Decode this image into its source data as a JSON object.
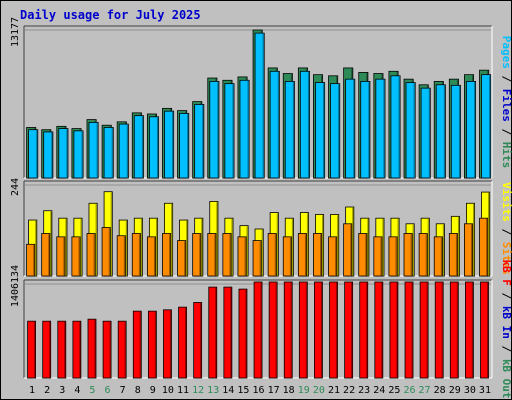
{
  "chart_data": {
    "type": "bar",
    "title": "Daily usage for July 2025",
    "colors": {
      "background": "#C0C0C0",
      "frame": "#FFFFFF",
      "title": "#0000CC",
      "hits": "#2E8B57",
      "files": "#00BFFF",
      "pages": "#00BFFF",
      "visits": "#FFFF00",
      "sites": "#FF8C00",
      "kbin": "#0000CC",
      "kbout": "#2E8B57",
      "kbf": "#FF0000",
      "label_normal": "#000000",
      "label_weekend": "#2E8B57",
      "gridline": "#808080"
    },
    "categories": [
      "1",
      "2",
      "3",
      "4",
      "5",
      "6",
      "7",
      "8",
      "9",
      "10",
      "11",
      "12",
      "13",
      "14",
      "15",
      "16",
      "17",
      "18",
      "19",
      "20",
      "21",
      "22",
      "23",
      "24",
      "25",
      "26",
      "27",
      "28",
      "29",
      "30",
      "31"
    ],
    "weekend_days": [
      "5",
      "6",
      "12",
      "13",
      "19",
      "20",
      "26",
      "27"
    ],
    "panels": [
      {
        "id": "top",
        "ytick": "13177",
        "ymax": 13177,
        "right_labels": [
          {
            "text": "Pages",
            "color": "#00BFFF"
          },
          {
            "text": " / ",
            "color": "#000000"
          },
          {
            "text": "Files",
            "color": "#0000CC"
          },
          {
            "text": " / ",
            "color": "#000000"
          },
          {
            "text": "Hits",
            "color": "#2E8B57"
          }
        ],
        "series": [
          {
            "name": "Hits",
            "values": [
              4500,
              4300,
              4600,
              4400,
              5200,
              4700,
              5000,
              5800,
              5700,
              6200,
              6000,
              6800,
              8900,
              8700,
              9000,
              13177,
              9800,
              9300,
              9800,
              9200,
              9100,
              9800,
              9400,
              9300,
              9500,
              8800,
              8300,
              8600,
              8800,
              9200,
              9600
            ]
          },
          {
            "name": "Files",
            "values": [
              4300,
              4100,
              4400,
              4200,
              4950,
              4500,
              4800,
              5550,
              5450,
              5950,
              5750,
              6550,
              8600,
              8400,
              8700,
              12900,
              9500,
              8600,
              9500,
              8500,
              8400,
              8800,
              8600,
              8800,
              9100,
              8500,
              8000,
              8300,
              8250,
              8600,
              9200
            ]
          },
          {
            "name": "Pages",
            "values": [
              4300,
              4100,
              4400,
              4200,
              4950,
              4500,
              4800,
              5550,
              5450,
              5950,
              5750,
              6550,
              8600,
              8400,
              8700,
              12900,
              9500,
              8600,
              9500,
              8500,
              8400,
              8800,
              8600,
              8800,
              9100,
              8500,
              8000,
              8300,
              8250,
              8600,
              9200
            ]
          }
        ]
      },
      {
        "id": "middle",
        "ytick": "244",
        "ymax": 244,
        "right_labels": [
          {
            "text": "Visits",
            "color": "#FFFF00"
          },
          {
            "text": " / ",
            "color": "#000000"
          },
          {
            "text": "Sites",
            "color": "#FF8C00"
          }
        ],
        "series": [
          {
            "name": "Visits",
            "values": [
              150,
              175,
              155,
              155,
              195,
              226,
              150,
              155,
              155,
              195,
              150,
              155,
              200,
              155,
              135,
              126,
              170,
              155,
              170,
              165,
              165,
              185,
              155,
              155,
              155,
              140,
              155,
              140,
              160,
              195,
              225
            ]
          },
          {
            "name": "Sites",
            "values": [
              85,
              114,
              105,
              105,
              114,
              130,
              108,
              114,
              105,
              114,
              95,
              114,
              114,
              114,
              105,
              95,
              114,
              105,
              114,
              114,
              105,
              140,
              114,
              105,
              105,
              114,
              114,
              105,
              114,
              140,
              155
            ]
          }
        ]
      },
      {
        "id": "bottom",
        "ytick": "1406134",
        "ymax": 1406134,
        "right_labels": [
          {
            "text": "kB F",
            "color": "#FF0000"
          },
          {
            "text": " / ",
            "color": "#000000"
          },
          {
            "text": "kB In",
            "color": "#0000CC"
          },
          {
            "text": " / ",
            "color": "#000000"
          },
          {
            "text": "kB Out",
            "color": "#2E8B57"
          }
        ],
        "series": [
          {
            "name": "kB F",
            "values": [
              850000,
              850000,
              850000,
              850000,
              880000,
              850000,
              850000,
              1000000,
              1000000,
              1020000,
              1060000,
              1130000,
              1360000,
              1360000,
              1330000,
              1530000,
              1600000,
              1650000,
              1770000,
              1740000,
              1740000,
              1740000,
              1770000,
              1800000,
              1920000,
              1890000,
              1890000,
              1890000,
              1890000,
              1890000,
              1920000
            ]
          }
        ]
      }
    ]
  }
}
